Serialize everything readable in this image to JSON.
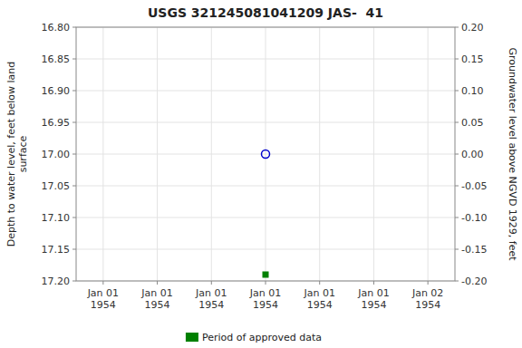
{
  "chart_data": {
    "type": "scatter",
    "title": "USGS 321245081041209 JAS-  41",
    "y_label": "Depth to water level, feet below land\nsurface",
    "y2_label": "Groundwater level above NGVD 1929, feet",
    "categories": [
      "Jan 01\n1954",
      "Jan 01\n1954",
      "Jan 01\n1954",
      "Jan 01\n1954",
      "Jan 01\n1954",
      "Jan 01\n1954",
      "Jan 02\n1954"
    ],
    "series": [
      {
        "color": "#0000cc",
        "marker": "open-circle",
        "values": [
          null,
          null,
          null,
          17.0,
          null,
          null,
          null
        ]
      },
      {
        "name": "Period of approved data",
        "color": "#008000",
        "marker": "square",
        "values": [
          null,
          null,
          null,
          17.19,
          null,
          null,
          null
        ]
      }
    ],
    "ylim": [
      17.2,
      16.8
    ],
    "yticks": [
      {
        "value": 16.8,
        "label": "16.80"
      },
      {
        "value": 16.85,
        "label": "16.85"
      },
      {
        "value": 16.9,
        "label": "16.90"
      },
      {
        "value": 16.95,
        "label": "16.95"
      },
      {
        "value": 17.0,
        "label": "17.00"
      },
      {
        "value": 17.05,
        "label": "17.05"
      },
      {
        "value": 17.1,
        "label": "17.10"
      },
      {
        "value": 17.15,
        "label": "17.15"
      },
      {
        "value": 17.2,
        "label": "17.20"
      }
    ],
    "y2lim": [
      -0.2,
      0.2
    ],
    "y2ticks": [
      {
        "value": 0.2,
        "label": "0.20"
      },
      {
        "value": 0.15,
        "label": "0.15"
      },
      {
        "value": 0.1,
        "label": "0.10"
      },
      {
        "value": 0.05,
        "label": "0.05"
      },
      {
        "value": 0.0,
        "label": "0.00"
      },
      {
        "value": -0.05,
        "label": "-0.05"
      },
      {
        "value": -0.1,
        "label": "-0.10"
      },
      {
        "value": -0.15,
        "label": "-0.15"
      },
      {
        "value": -0.2,
        "label": "-0.20"
      }
    ],
    "grid": true,
    "legend": "bottom"
  }
}
